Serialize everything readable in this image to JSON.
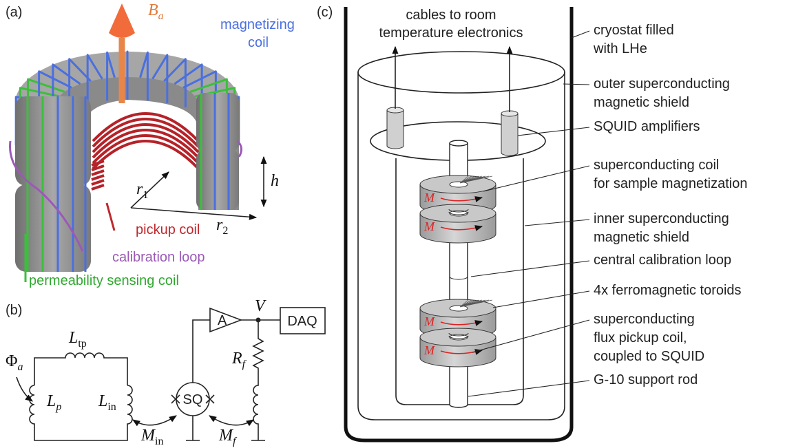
{
  "panel_a": {
    "tag": "(a)",
    "field": {
      "symbol": "B",
      "sub": "a"
    },
    "magnetizing_coil": [
      "magnetizing",
      "coil"
    ],
    "height": "h",
    "inner_radius": {
      "symbol": "r",
      "sub": "1"
    },
    "outer_radius": {
      "symbol": "r",
      "sub": "2"
    },
    "pickup_coil": "pickup coil",
    "calibration_loop": "calibration loop",
    "permeability_coil": "permeability sensing coil"
  },
  "panel_b": {
    "tag": "(b)",
    "flux": {
      "symbol": "Φ",
      "sub": "a"
    },
    "L_tp": {
      "symbol": "L",
      "sub": "tp"
    },
    "L_p": {
      "symbol": "L",
      "sub": "p"
    },
    "L_in": {
      "symbol": "L",
      "sub": "in"
    },
    "amplifier": "A",
    "voltage": "V",
    "daq": "DAQ",
    "R_f": {
      "symbol": "R",
      "sub": "f"
    },
    "squid": "SQ",
    "M_in": {
      "symbol": "M",
      "sub": "in"
    },
    "M_f": {
      "symbol": "M",
      "sub": "f"
    }
  },
  "panel_c": {
    "tag": "(c)",
    "cables": [
      "cables to room",
      "temperature electronics"
    ],
    "callouts": [
      {
        "lines": [
          "cryostat filled",
          "with LHe"
        ]
      },
      {
        "lines": [
          "outer superconducting",
          "magnetic shield"
        ]
      },
      {
        "lines": [
          "SQUID amplifiers"
        ]
      },
      {
        "lines": [
          "superconducting coil",
          "for sample magnetization"
        ]
      },
      {
        "lines": [
          "inner superconducting",
          "magnetic shield"
        ]
      },
      {
        "lines": [
          "central calibration loop"
        ]
      },
      {
        "lines": [
          "4x ferromagnetic toroids"
        ]
      },
      {
        "lines": [
          "superconducting",
          "flux pickup coil,",
          "coupled to SQUID"
        ]
      },
      {
        "lines": [
          "G-10 support rod"
        ]
      }
    ],
    "magnetization": [
      "M",
      "M",
      "M",
      "M"
    ]
  }
}
